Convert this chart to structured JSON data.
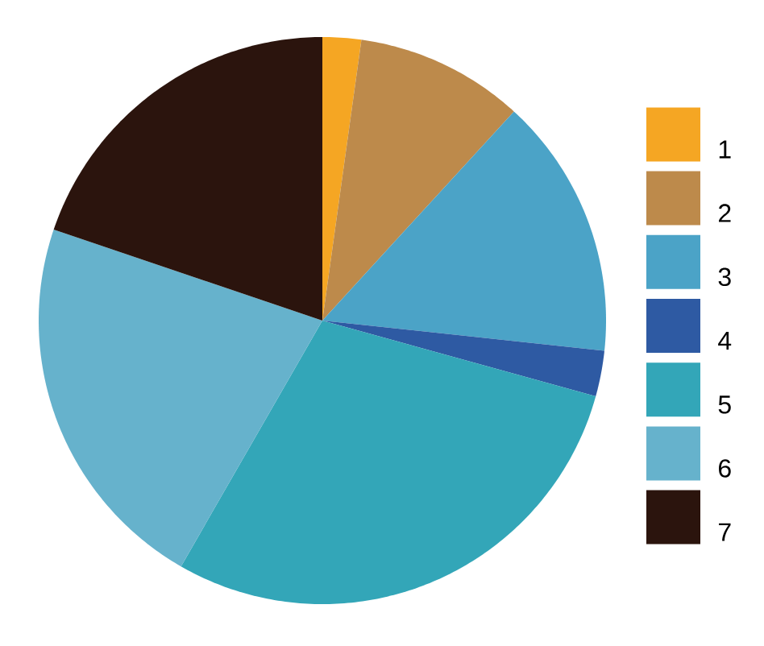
{
  "chart_data": {
    "type": "pie",
    "categories": [
      "1",
      "2",
      "3",
      "4",
      "5",
      "6",
      "7"
    ],
    "values": [
      2.2,
      9.6,
      14.9,
      2.6,
      29.0,
      21.9,
      19.8
    ],
    "colors": [
      "#f5a623",
      "#bd8a4b",
      "#4ba3c7",
      "#2e5aa3",
      "#33a6b8",
      "#66b2cc",
      "#2b140d"
    ],
    "legend": "right"
  }
}
